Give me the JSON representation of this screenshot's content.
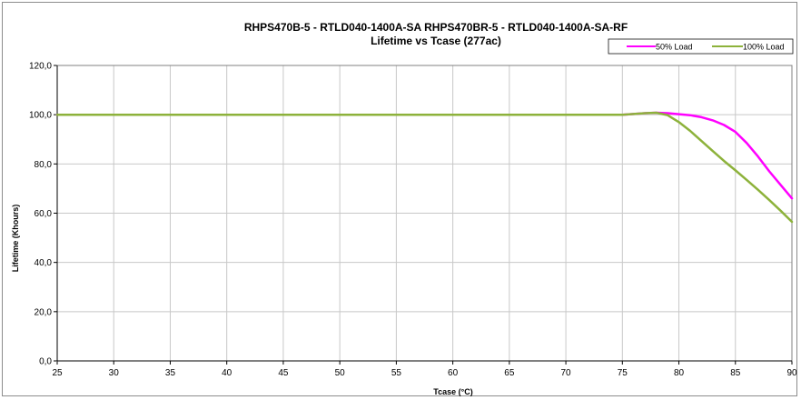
{
  "chart_data": {
    "type": "line",
    "title": "RHPS470B-5 - RTLD040-1400A-SA    RHPS470BR-5 - RTLD040-1400A-SA-RF",
    "subtitle": "Lifetime vs Tcase (277ac)",
    "xlabel": "Tcase (°C)",
    "ylabel": "Lifetime (Khours)",
    "xlim": [
      25,
      90
    ],
    "ylim": [
      0,
      120
    ],
    "x_ticks": [
      "25",
      "30",
      "35",
      "40",
      "45",
      "50",
      "55",
      "60",
      "65",
      "70",
      "75",
      "80",
      "85",
      "90"
    ],
    "y_ticks": [
      "0,0",
      "20,0",
      "40,0",
      "60,0",
      "80,0",
      "100,0",
      "120,0"
    ],
    "grid": true,
    "legend_position": "top-right",
    "series": [
      {
        "name": "50% Load",
        "color": "#ff00ff",
        "points": [
          [
            25,
            100
          ],
          [
            75,
            100
          ],
          [
            76,
            100.3
          ],
          [
            77,
            100.6
          ],
          [
            78,
            100.8
          ],
          [
            79,
            100.6
          ],
          [
            80,
            100.2
          ],
          [
            81,
            99.8
          ],
          [
            82,
            99
          ],
          [
            83,
            97.7
          ],
          [
            84,
            95.8
          ],
          [
            85,
            93
          ],
          [
            86,
            88.5
          ],
          [
            87,
            83
          ],
          [
            88,
            77
          ],
          [
            89,
            71.5
          ],
          [
            90,
            66
          ]
        ]
      },
      {
        "name": "100% Load",
        "color": "#8db23b",
        "points": [
          [
            25,
            100
          ],
          [
            75,
            100
          ],
          [
            76,
            100.3
          ],
          [
            77,
            100.6
          ],
          [
            78,
            100.8
          ],
          [
            79,
            99.8
          ],
          [
            80,
            97
          ],
          [
            81,
            93.4
          ],
          [
            82,
            89.3
          ],
          [
            83,
            85.2
          ],
          [
            84,
            81.2
          ],
          [
            85,
            77.4
          ],
          [
            86,
            73.5
          ],
          [
            87,
            69.5
          ],
          [
            88,
            65.3
          ],
          [
            89,
            61
          ],
          [
            90,
            56.5
          ]
        ]
      }
    ]
  }
}
